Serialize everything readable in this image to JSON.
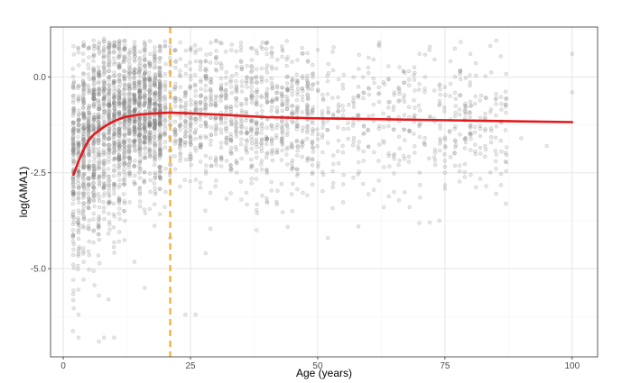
{
  "chart_data": {
    "type": "scatter",
    "title": "",
    "xlabel": "Age (years)",
    "ylabel": "log(AMA1)",
    "xlim": [
      -2.5,
      105
    ],
    "ylim": [
      -7.3,
      1.3
    ],
    "x_ticks": [
      0,
      25,
      50,
      75,
      100
    ],
    "x_tick_labels": [
      "0",
      "25",
      "50",
      "75",
      "100"
    ],
    "y_ticks": [
      0.0,
      -2.5,
      -5.0
    ],
    "y_tick_labels": [
      "0.0",
      "-2.5",
      "-5.0"
    ],
    "grid": true,
    "legend": "none",
    "scatter": {
      "color": "#808080",
      "opacity": 0.35,
      "description_points": [
        {
          "x": 2,
          "y": -2.6
        },
        {
          "x": 2,
          "y": -4.5
        },
        {
          "x": 2,
          "y": 0.8
        },
        {
          "x": 3,
          "y": -6.2
        },
        {
          "x": 3,
          "y": -6.8
        },
        {
          "x": 4,
          "y": 0.9
        },
        {
          "x": 5,
          "y": -2.0
        },
        {
          "x": 6,
          "y": -4.0
        },
        {
          "x": 7,
          "y": -5.7
        },
        {
          "x": 8,
          "y": -6.8
        },
        {
          "x": 8,
          "y": 1.0
        },
        {
          "x": 10,
          "y": -6.8
        },
        {
          "x": 10,
          "y": 0.9
        },
        {
          "x": 12,
          "y": -3.5
        },
        {
          "x": 14,
          "y": 0.6
        },
        {
          "x": 16,
          "y": -5.5
        },
        {
          "x": 18,
          "y": -2.9
        },
        {
          "x": 20,
          "y": 0.8
        },
        {
          "x": 21,
          "y": -4.2
        },
        {
          "x": 24,
          "y": -6.2
        },
        {
          "x": 26,
          "y": -6.2
        },
        {
          "x": 28,
          "y": -4.6
        },
        {
          "x": 30,
          "y": 0.5
        },
        {
          "x": 35,
          "y": -3.2
        },
        {
          "x": 38,
          "y": -4.0
        },
        {
          "x": 40,
          "y": 0.6
        },
        {
          "x": 45,
          "y": -3.5
        },
        {
          "x": 50,
          "y": 0.7
        },
        {
          "x": 52,
          "y": -4.2
        },
        {
          "x": 55,
          "y": -2.8
        },
        {
          "x": 58,
          "y": -3.9
        },
        {
          "x": 60,
          "y": 0.5
        },
        {
          "x": 65,
          "y": -3.0
        },
        {
          "x": 70,
          "y": 0.6
        },
        {
          "x": 72,
          "y": -3.8
        },
        {
          "x": 75,
          "y": -2.5
        },
        {
          "x": 80,
          "y": 0.6
        },
        {
          "x": 82,
          "y": -2.0
        },
        {
          "x": 85,
          "y": -2.2
        },
        {
          "x": 90,
          "y": -1.6
        },
        {
          "x": 95,
          "y": -1.8
        },
        {
          "x": 100,
          "y": 0.6
        },
        {
          "x": 100,
          "y": -0.4
        }
      ]
    },
    "series": [
      {
        "type": "line",
        "color": "#e31a1c",
        "x": [
          2,
          3,
          4,
          5,
          6,
          8,
          10,
          12,
          15,
          18,
          21,
          25,
          30,
          40,
          50,
          60,
          70,
          80,
          90,
          100
        ],
        "y": [
          -2.55,
          -2.2,
          -1.9,
          -1.65,
          -1.5,
          -1.3,
          -1.15,
          -1.05,
          -0.98,
          -0.95,
          -0.93,
          -0.95,
          -0.98,
          -1.05,
          -1.08,
          -1.1,
          -1.12,
          -1.14,
          -1.16,
          -1.18
        ]
      }
    ],
    "reference_line": {
      "orientation": "vertical",
      "x": 21,
      "style": "dashed",
      "color": "#f5a623"
    }
  }
}
